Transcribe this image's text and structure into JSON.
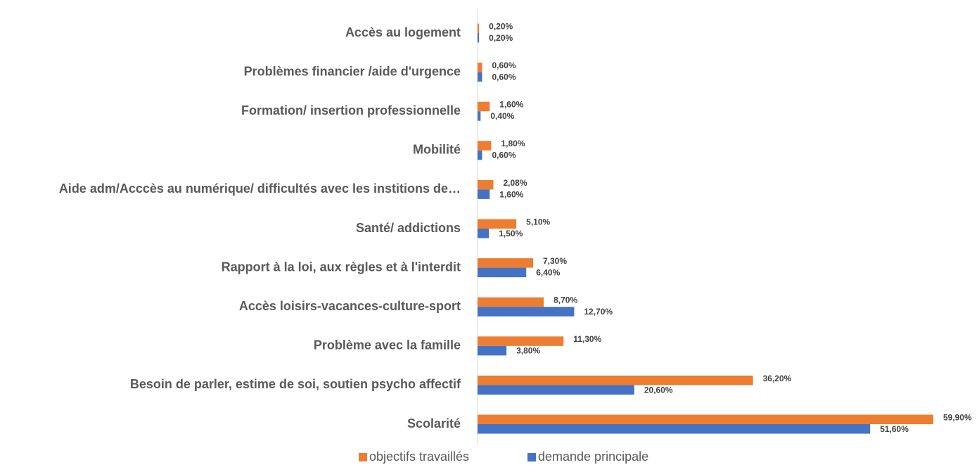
{
  "chart_data": {
    "type": "barh",
    "categories": [
      "Accès au logement",
      "Problèmes financier /aide d'urgence",
      "Formation/ insertion professionnelle",
      "Mobilité",
      "Aide adm/Acccès au numérique/ difficultés avec les institions de…",
      "Santé/ addictions",
      "Rapport à la loi, aux règles et à l'interdit",
      "Accès loisirs-vacances-culture-sport",
      "Problème avec la famille",
      "Besoin de parler, estime de soi, soutien psycho affectif",
      "Scolarité"
    ],
    "series": [
      {
        "name": "objectifs travaillés",
        "color": "#ed7d31",
        "values": [
          0.2,
          0.6,
          1.6,
          1.8,
          2.08,
          5.1,
          7.3,
          8.7,
          11.3,
          36.2,
          59.9
        ],
        "value_labels": [
          "0,20%",
          "0,60%",
          "1,60%",
          "1,80%",
          "2,08%",
          "5,10%",
          "7,30%",
          "8,70%",
          "11,30%",
          "36,20%",
          "59,90%"
        ]
      },
      {
        "name": "demande principale",
        "color": "#4472c4",
        "values": [
          0.2,
          0.6,
          0.4,
          0.6,
          1.6,
          1.5,
          6.4,
          12.7,
          3.8,
          20.6,
          51.6
        ],
        "value_labels": [
          "0,20%",
          "0,60%",
          "0,40%",
          "0,60%",
          "1,60%",
          "1,50%",
          "6,40%",
          "12,70%",
          "3,80%",
          "20,60%",
          "51,60%"
        ]
      }
    ],
    "legend": "bottom"
  }
}
